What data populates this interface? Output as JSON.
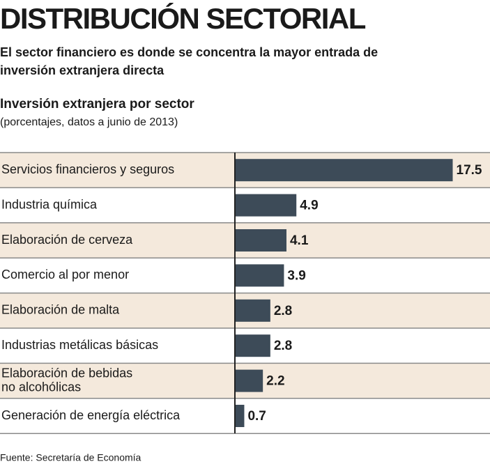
{
  "title": "DISTRIBUCIÓN SECTORIAL",
  "subtitle": [
    "El sector financiero es donde se concentra la mayor entrada de",
    "inversión extranjera directa"
  ],
  "source": "Fuente: Secretaría de Economía",
  "chart_data": {
    "type": "bar",
    "orientation": "horizontal",
    "title": "Inversión extranjera por sector",
    "subtitle": "(porcentajes, datos a junio de 2013)",
    "categories": [
      "Servicios financieros y seguros",
      "Industria química",
      "Elaboración de cerveza",
      "Comercio al por menor",
      "Elaboración de malta",
      "Industrias metálicas básicas",
      "Elaboración de bebidas\nno alcohólicas",
      "Generación de energía eléctrica"
    ],
    "values": [
      17.5,
      4.9,
      4.1,
      3.9,
      2.8,
      2.8,
      2.2,
      0.7
    ],
    "color": "#3d4b58"
  }
}
